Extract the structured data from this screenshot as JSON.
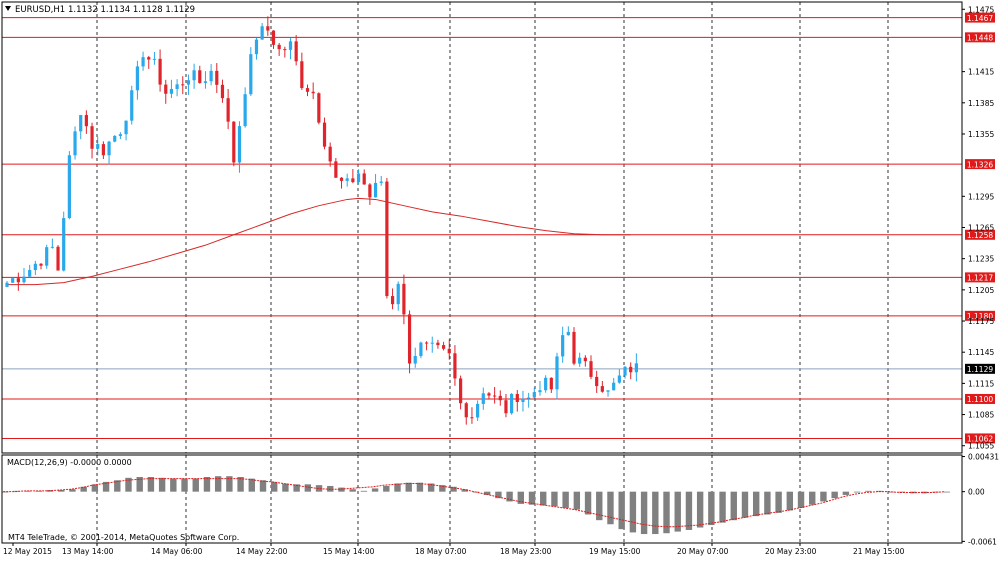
{
  "header": {
    "symbol": "EURUSD,H1",
    "ohlc": "1.1132 1.1134 1.1128 1.1129"
  },
  "macd_header": "MACD(12,26,9) -0.0000 0.0000",
  "copyright": "MT4 TeleTrade, © 2001-2014, MetaQuotes Software Corp.",
  "colors": {
    "bull": "#29a8ec",
    "bear": "#e0242c",
    "level": "#e01a1a",
    "ma": "#d62828",
    "histogram": "#808080",
    "signal": "#e01a1a",
    "current_price_line": "#8ca3bf",
    "current_price_label_bg": "#000000"
  },
  "chart_data": [
    {
      "type": "candlestick",
      "instrument": "EURUSD",
      "timeframe": "H1",
      "price_axis_ticks": [
        "1.1475",
        "1.1415",
        "1.1385",
        "1.1355",
        "1.1295",
        "1.1265",
        "1.1235",
        "1.1205",
        "1.1175",
        "1.1145",
        "1.1115",
        "1.1085",
        "1.1055"
      ],
      "ylim": [
        1.1048,
        1.1482
      ],
      "time_axis_labels": [
        "12 May 2015",
        "13 May 14:00",
        "14 May 06:00",
        "14 May 22:00",
        "15 May 14:00",
        "18 May 07:00",
        "18 May 23:00",
        "19 May 15:00",
        "20 May 07:00",
        "20 May 23:00",
        "21 May 15:00"
      ],
      "horizontal_levels": [
        1.1467,
        1.1448,
        1.1326,
        1.1258,
        1.1217,
        1.118,
        1.11,
        1.1062
      ],
      "level_labels": [
        "1.1467",
        "1.1448",
        "1.1326",
        "1.1258",
        "1.1217",
        "1.1180",
        "1.1100",
        "1.1062"
      ],
      "current_price": 1.1129,
      "current_price_label": "1.1129",
      "moving_average_path": [
        [
          0,
          1.121
        ],
        [
          5,
          1.121
        ],
        [
          10,
          1.1212
        ],
        [
          15,
          1.1218
        ],
        [
          20,
          1.1225
        ],
        [
          25,
          1.1232
        ],
        [
          30,
          1.124
        ],
        [
          35,
          1.1248
        ],
        [
          40,
          1.1258
        ],
        [
          45,
          1.1268
        ],
        [
          50,
          1.1278
        ],
        [
          55,
          1.1286
        ],
        [
          60,
          1.1292
        ],
        [
          62,
          1.1293
        ],
        [
          65,
          1.1292
        ],
        [
          70,
          1.1286
        ],
        [
          75,
          1.128
        ],
        [
          80,
          1.1276
        ],
        [
          85,
          1.1271
        ],
        [
          90,
          1.1266
        ],
        [
          95,
          1.1262
        ],
        [
          100,
          1.1259
        ],
        [
          105,
          1.1258
        ],
        [
          110,
          1.1258
        ]
      ],
      "anchors": [
        [
          0,
          1.1212
        ],
        [
          4,
          1.1225
        ],
        [
          8,
          1.1245
        ],
        [
          9,
          1.1225
        ],
        [
          11,
          1.133
        ],
        [
          13,
          1.138
        ],
        [
          15,
          1.1345
        ],
        [
          17,
          1.134
        ],
        [
          20,
          1.136
        ],
        [
          22,
          1.139
        ],
        [
          24,
          1.1435
        ],
        [
          26,
          1.142
        ],
        [
          28,
          1.1395
        ],
        [
          30,
          1.14
        ],
        [
          32,
          1.1412
        ],
        [
          34,
          1.1405
        ],
        [
          36,
          1.1415
        ],
        [
          38,
          1.1395
        ],
        [
          40,
          1.133
        ],
        [
          42,
          1.14
        ],
        [
          44,
          1.145
        ],
        [
          46,
          1.1455
        ],
        [
          48,
          1.1435
        ],
        [
          50,
          1.144
        ],
        [
          52,
          1.1405
        ],
        [
          54,
          1.1395
        ],
        [
          56,
          1.135
        ],
        [
          58,
          1.131
        ],
        [
          60,
          1.1305
        ],
        [
          62,
          1.1318
        ],
        [
          64,
          1.1295
        ],
        [
          66,
          1.131
        ],
        [
          67,
          1.12
        ],
        [
          68,
          1.1195
        ],
        [
          69,
          1.1215
        ],
        [
          71,
          1.114
        ],
        [
          73,
          1.115
        ],
        [
          76,
          1.1145
        ],
        [
          78,
          1.114
        ],
        [
          80,
          1.1095
        ],
        [
          82,
          1.1085
        ],
        [
          84,
          1.111
        ],
        [
          86,
          1.11
        ],
        [
          88,
          1.109
        ],
        [
          90,
          1.1105
        ],
        [
          92,
          1.11
        ],
        [
          94,
          1.1115
        ],
        [
          96,
          1.111
        ],
        [
          98,
          1.116
        ],
        [
          99,
          1.1165
        ],
        [
          100,
          1.114
        ],
        [
          102,
          1.113
        ],
        [
          104,
          1.112
        ],
        [
          106,
          1.1105
        ],
        [
          108,
          1.112
        ],
        [
          110,
          1.113
        ],
        [
          111,
          1.1129
        ]
      ]
    },
    {
      "type": "histogram",
      "name": "MACD(12,26,9)",
      "axis_ticks": [
        "0.00431",
        "0.00",
        "-0.0061"
      ],
      "ylim": [
        -0.0063,
        0.0045
      ],
      "histogram": [
        0.0,
        0.0001,
        0.0001,
        0.0001,
        0.0002,
        0.0002,
        0.0003,
        0.0006,
        0.0009,
        0.0012,
        0.0014,
        0.0017,
        0.0018,
        0.0018,
        0.0017,
        0.0016,
        0.0016,
        0.0016,
        0.0018,
        0.0019,
        0.0019,
        0.0018,
        0.0016,
        0.0014,
        0.0012,
        0.001,
        0.0009,
        0.0009,
        0.0008,
        0.0007,
        0.0005,
        0.0003,
        0.0001,
        0.0004,
        0.0007,
        0.001,
        0.0011,
        0.0011,
        0.001,
        0.0008,
        0.0006,
        0.0003,
        0.0,
        -0.0004,
        -0.0008,
        -0.0012,
        -0.0015,
        -0.0016,
        -0.0017,
        -0.0018,
        -0.002,
        -0.0022,
        -0.0028,
        -0.0035,
        -0.004,
        -0.0046,
        -0.005,
        -0.0052,
        -0.0052,
        -0.0051,
        -0.0049,
        -0.0047,
        -0.0044,
        -0.0041,
        -0.0038,
        -0.0035,
        -0.0032,
        -0.003,
        -0.0028,
        -0.0026,
        -0.0023,
        -0.002,
        -0.0016,
        -0.0012,
        -0.0008,
        -0.0004,
        -0.0001,
        0.0001,
        0.0001,
        0.0,
        -0.0001,
        -0.0002,
        -0.0002,
        -0.0001,
        0.0
      ],
      "signal": [
        0.0,
        0.0,
        0.0001,
        0.0001,
        0.0001,
        0.0002,
        0.0003,
        0.0005,
        0.0008,
        0.001,
        0.0012,
        0.0014,
        0.0015,
        0.0016,
        0.0016,
        0.0016,
        0.0016,
        0.0016,
        0.0016,
        0.0016,
        0.0016,
        0.0016,
        0.0015,
        0.0013,
        0.0012,
        0.001,
        0.0008,
        0.0006,
        0.0004,
        0.0003,
        0.0003,
        0.0004,
        0.0005,
        0.0006,
        0.0008,
        0.0009,
        0.001,
        0.001,
        0.0009,
        0.0007,
        0.0005,
        0.0003,
        0.0,
        -0.0003,
        -0.0006,
        -0.0009,
        -0.0012,
        -0.0014,
        -0.0016,
        -0.0018,
        -0.002,
        -0.0022,
        -0.0025,
        -0.0028,
        -0.0031,
        -0.0034,
        -0.0037,
        -0.004,
        -0.0042,
        -0.0043,
        -0.0043,
        -0.0042,
        -0.0041,
        -0.0039,
        -0.0037,
        -0.0034,
        -0.0032,
        -0.0029,
        -0.0027,
        -0.0025,
        -0.0023,
        -0.002,
        -0.0017,
        -0.0014,
        -0.001,
        -0.0006,
        -0.0003,
        -0.0001,
        0.0,
        0.0,
        -0.0001,
        -0.0001,
        -0.0001,
        -0.0001,
        0.0
      ]
    }
  ]
}
